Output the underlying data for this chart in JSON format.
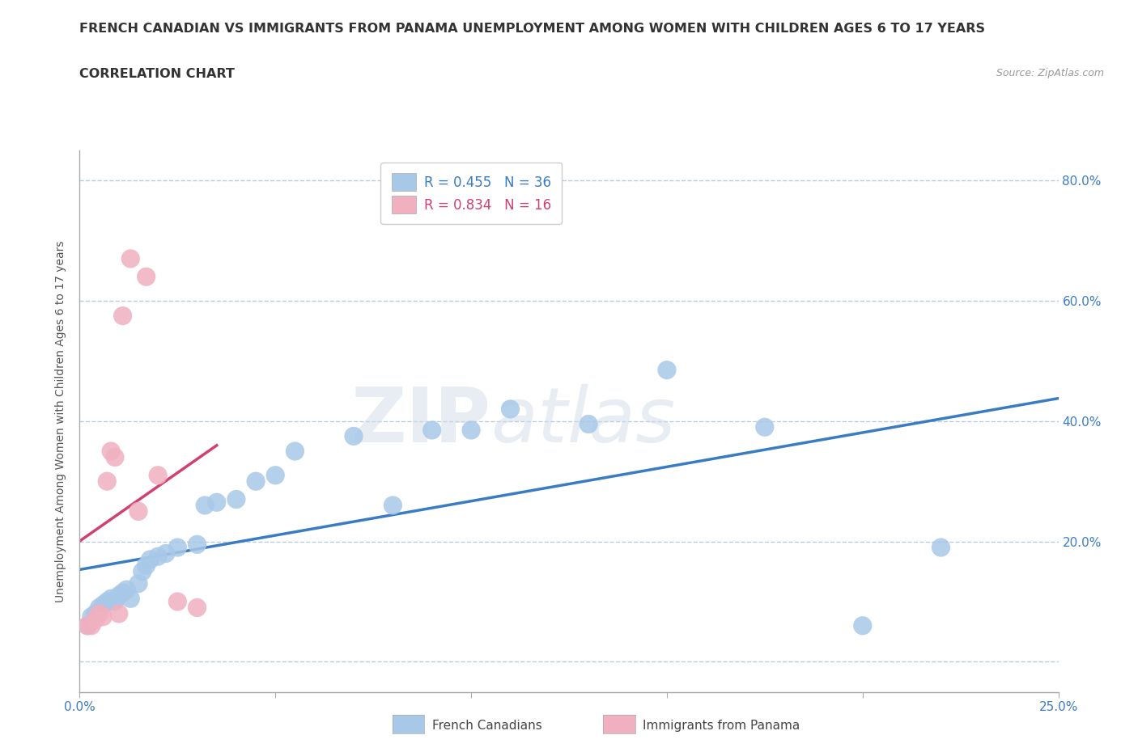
{
  "title": "FRENCH CANADIAN VS IMMIGRANTS FROM PANAMA UNEMPLOYMENT AMONG WOMEN WITH CHILDREN AGES 6 TO 17 YEARS",
  "subtitle": "CORRELATION CHART",
  "source": "Source: ZipAtlas.com",
  "ylabel": "Unemployment Among Women with Children Ages 6 to 17 years",
  "xlim": [
    0.0,
    0.25
  ],
  "ylim": [
    -0.05,
    0.85
  ],
  "xticks": [
    0.0,
    0.05,
    0.1,
    0.15,
    0.2,
    0.25
  ],
  "ytick_positions": [
    0.0,
    0.2,
    0.4,
    0.6,
    0.8
  ],
  "yticklabels_right": [
    "0.0%",
    "20.0%",
    "40.0%",
    "60.0%",
    "80.0%"
  ],
  "french_canadians_x": [
    0.002,
    0.003,
    0.004,
    0.005,
    0.006,
    0.007,
    0.008,
    0.009,
    0.01,
    0.011,
    0.012,
    0.013,
    0.015,
    0.016,
    0.017,
    0.018,
    0.02,
    0.022,
    0.025,
    0.03,
    0.032,
    0.035,
    0.04,
    0.045,
    0.05,
    0.055,
    0.07,
    0.08,
    0.09,
    0.1,
    0.11,
    0.13,
    0.15,
    0.175,
    0.2,
    0.22
  ],
  "french_canadians_y": [
    0.06,
    0.075,
    0.08,
    0.09,
    0.095,
    0.1,
    0.105,
    0.1,
    0.11,
    0.115,
    0.12,
    0.105,
    0.13,
    0.15,
    0.16,
    0.17,
    0.175,
    0.18,
    0.19,
    0.195,
    0.26,
    0.265,
    0.27,
    0.3,
    0.31,
    0.35,
    0.375,
    0.26,
    0.385,
    0.385,
    0.42,
    0.395,
    0.485,
    0.39,
    0.06,
    0.19
  ],
  "panama_x": [
    0.002,
    0.003,
    0.004,
    0.005,
    0.006,
    0.007,
    0.008,
    0.009,
    0.01,
    0.011,
    0.013,
    0.015,
    0.017,
    0.02,
    0.025,
    0.03
  ],
  "panama_y": [
    0.06,
    0.06,
    0.07,
    0.08,
    0.075,
    0.3,
    0.35,
    0.34,
    0.08,
    0.575,
    0.67,
    0.25,
    0.64,
    0.31,
    0.1,
    0.09
  ],
  "blue_color": "#a8c8e8",
  "pink_color": "#f0b0c0",
  "blue_line_color": "#3a7cc4",
  "pink_line_color": "#d04070",
  "legend_R_blue": "R = 0.455",
  "legend_N_blue": "N = 36",
  "legend_R_pink": "R = 0.834",
  "legend_N_pink": "N = 16",
  "watermark_zip": "ZIP",
  "watermark_atlas": "atlas",
  "title_fontsize": 11.5,
  "subtitle_fontsize": 11.5,
  "axis_label_fontsize": 10,
  "tick_fontsize": 11,
  "legend_fontsize": 12
}
